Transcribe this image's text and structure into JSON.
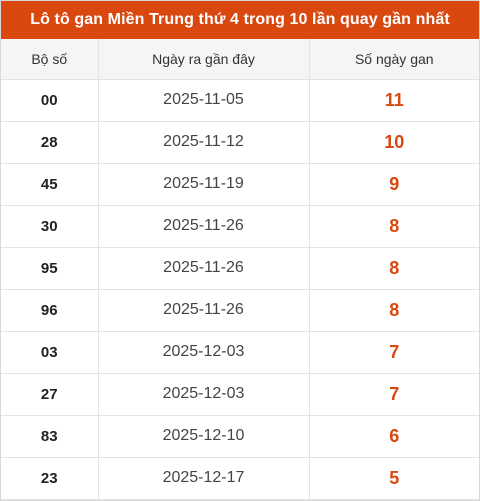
{
  "title": "Lô tô gan Miền Trung thứ 4 trong 10 lần quay gần nhất",
  "accent_color": "#d9480f",
  "table": {
    "headers": [
      "Bộ số",
      "Ngày ra gần đây",
      "Số ngày gan"
    ],
    "rows": [
      {
        "number": "00",
        "date": "2025-11-05",
        "days": "11"
      },
      {
        "number": "28",
        "date": "2025-11-12",
        "days": "10"
      },
      {
        "number": "45",
        "date": "2025-11-19",
        "days": "9"
      },
      {
        "number": "30",
        "date": "2025-11-26",
        "days": "8"
      },
      {
        "number": "95",
        "date": "2025-11-26",
        "days": "8"
      },
      {
        "number": "96",
        "date": "2025-11-26",
        "days": "8"
      },
      {
        "number": "03",
        "date": "2025-12-03",
        "days": "7"
      },
      {
        "number": "27",
        "date": "2025-12-03",
        "days": "7"
      },
      {
        "number": "83",
        "date": "2025-12-10",
        "days": "6"
      },
      {
        "number": "23",
        "date": "2025-12-17",
        "days": "5"
      }
    ]
  }
}
